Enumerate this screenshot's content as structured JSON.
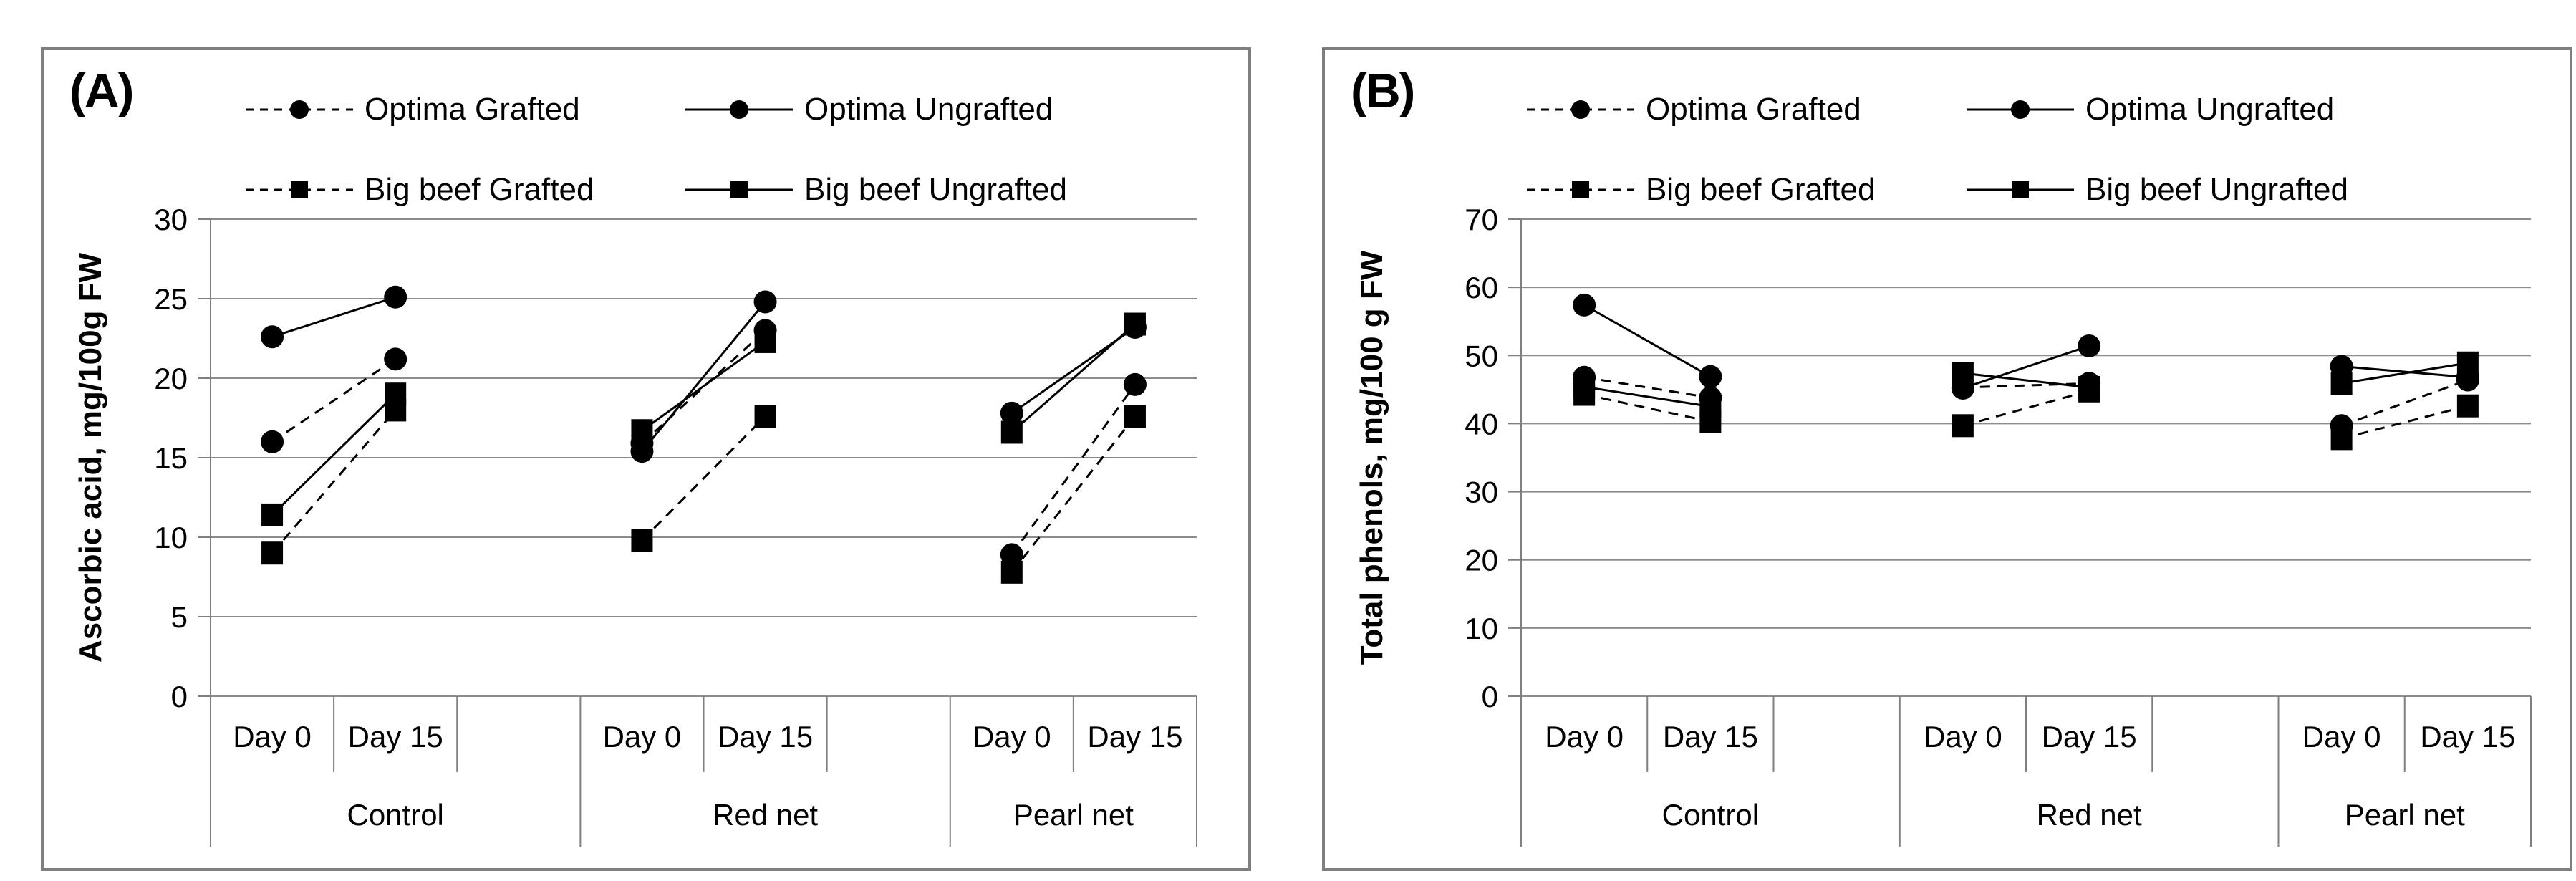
{
  "colors": {
    "marker": "#000000",
    "line": "#000000",
    "grid": "#8c8c8c",
    "axis": "#7f7f7f",
    "panel_border": "#7f7f7f",
    "text": "#000000",
    "background": "#ffffff"
  },
  "chart_data": [
    {
      "type": "line",
      "panel_label": "(A)",
      "ylabel": "Ascorbic acid, mg/100g FW",
      "ylim": [
        0,
        30
      ],
      "yticks": [
        0,
        5,
        10,
        15,
        20,
        25,
        30
      ],
      "grid": true,
      "legend_position": "top",
      "groups": [
        "Control",
        "Red net",
        "Pearl net"
      ],
      "x_sublabels": [
        "Day 0",
        "Day 15"
      ],
      "series": [
        {
          "name": "Optima Grafted",
          "marker": "circle",
          "line": "dashed",
          "values": [
            [
              16.0,
              21.2
            ],
            [
              15.9,
              23.0
            ],
            [
              8.9,
              19.6
            ]
          ]
        },
        {
          "name": "Optima Ungrafted",
          "marker": "circle",
          "line": "solid",
          "values": [
            [
              22.6,
              25.1
            ],
            [
              15.4,
              24.8
            ],
            [
              17.8,
              23.2
            ]
          ]
        },
        {
          "name": "Big beef Grafted",
          "marker": "square",
          "line": "dashed",
          "values": [
            [
              9.0,
              18.0
            ],
            [
              9.8,
              17.6
            ],
            [
              7.8,
              17.6
            ]
          ]
        },
        {
          "name": "Big beef Ungrafted",
          "marker": "square",
          "line": "solid",
          "values": [
            [
              11.4,
              19.0
            ],
            [
              16.7,
              22.3
            ],
            [
              16.6,
              23.4
            ]
          ]
        }
      ]
    },
    {
      "type": "line",
      "panel_label": "(B)",
      "ylabel": "Total phenols, mg/100 g FW",
      "ylim": [
        0,
        70
      ],
      "yticks": [
        0,
        10,
        20,
        30,
        40,
        50,
        60,
        70
      ],
      "grid": true,
      "legend_position": "top",
      "groups": [
        "Control",
        "Red net",
        "Pearl net"
      ],
      "x_sublabels": [
        "Day 0",
        "Day 15"
      ],
      "series": [
        {
          "name": "Optima Grafted",
          "marker": "circle",
          "line": "dashed",
          "values": [
            [
              46.8,
              43.8
            ],
            [
              45.3,
              45.9
            ],
            [
              39.7,
              46.4
            ]
          ]
        },
        {
          "name": "Optima Ungrafted",
          "marker": "circle",
          "line": "solid",
          "values": [
            [
              57.4,
              46.9
            ],
            [
              45.2,
              51.4
            ],
            [
              48.4,
              46.8
            ]
          ]
        },
        {
          "name": "Big beef Grafted",
          "marker": "square",
          "line": "dashed",
          "values": [
            [
              44.3,
              40.3
            ],
            [
              39.7,
              44.8
            ],
            [
              37.8,
              42.6
            ]
          ]
        },
        {
          "name": "Big beef Ungrafted",
          "marker": "square",
          "line": "solid",
          "values": [
            [
              45.4,
              42.5
            ],
            [
              47.4,
              45.3
            ],
            [
              45.9,
              48.9
            ]
          ]
        }
      ]
    }
  ]
}
